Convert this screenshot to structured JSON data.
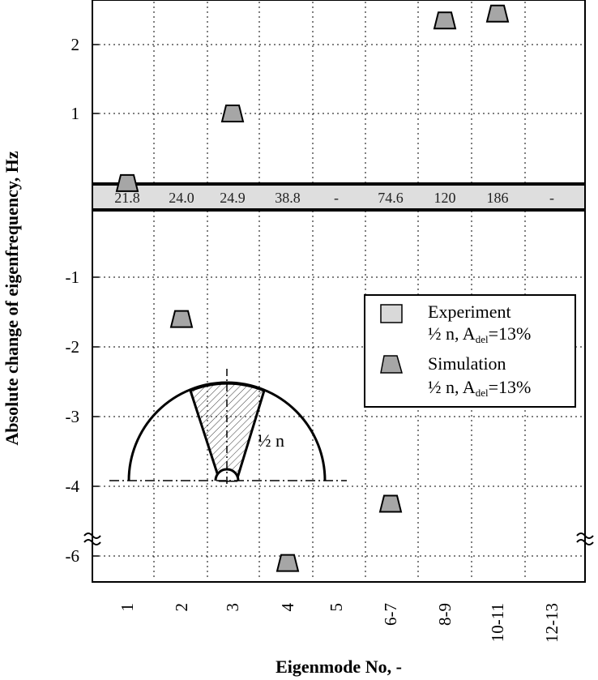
{
  "chart_data": {
    "type": "scatter",
    "xlabel": "Eigenmode No, -",
    "ylabel": "Absolute change of eigenfrequency, Hz",
    "categories": [
      "1",
      "2",
      "3",
      "4",
      "5",
      "6-7",
      "8-9",
      "10-11",
      "12-13"
    ],
    "y_ticks": [
      "2",
      "1",
      "-1",
      "-2",
      "-3",
      "-4",
      "-6"
    ],
    "ylim": [
      -6,
      2.5
    ],
    "y_axis_break": "between -4 and -6",
    "grid": true,
    "reference_frequencies": [
      "21.8",
      "24.0",
      "24.9",
      "38.8",
      "-",
      "74.6",
      "120",
      "186",
      "-"
    ],
    "series": [
      {
        "name": "Simulation ½ n, Adel=13%",
        "marker": "trapezoid",
        "color": "#a6a6a6",
        "points": [
          {
            "x": "1",
            "y": 0.35
          },
          {
            "x": "2",
            "y": -1.6
          },
          {
            "x": "3",
            "y": 1.0
          },
          {
            "x": "4",
            "y": -6.2
          },
          {
            "x": "6-7",
            "y": -4.5
          },
          {
            "x": "8-9",
            "y": 2.35
          },
          {
            "x": "10-11",
            "y": 2.45
          }
        ]
      }
    ],
    "legend": {
      "position": "right",
      "entries": [
        {
          "label": "Experiment",
          "sub_prefix": "½ n, A",
          "sub_subscript": "del",
          "sub_suffix": "=13%",
          "marker": "square",
          "color": "#d9d9d9"
        },
        {
          "label": "Simulation",
          "sub_prefix": "½ n, A",
          "sub_subscript": "del",
          "sub_suffix": "=13%",
          "marker": "trapezoid",
          "color": "#a6a6a6"
        }
      ]
    },
    "inset_label": "½ n"
  }
}
